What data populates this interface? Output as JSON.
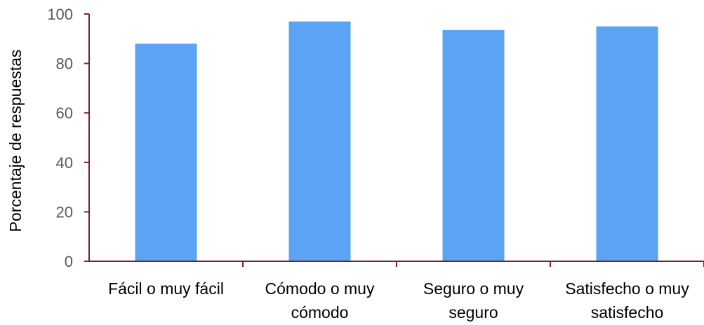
{
  "chart_data": {
    "type": "bar",
    "title": "",
    "xlabel": "",
    "ylabel": "Porcentaje de respuestas",
    "categories": [
      [
        "Fácil o muy fácil"
      ],
      [
        "Cómodo o muy",
        "cómodo"
      ],
      [
        "Seguro o muy",
        "seguro"
      ],
      [
        "Satisfecho o muy",
        "satisfecho"
      ]
    ],
    "values": [
      88,
      97,
      93.5,
      95
    ],
    "ylim": [
      0,
      100
    ],
    "yticks": [
      0,
      20,
      40,
      60,
      80,
      100
    ],
    "grid": false,
    "legend": "none",
    "colors": {
      "bar": "#5ba3f5",
      "axis": "#7b1f33",
      "tick_text": "#595959",
      "label_text": "#000000"
    }
  }
}
